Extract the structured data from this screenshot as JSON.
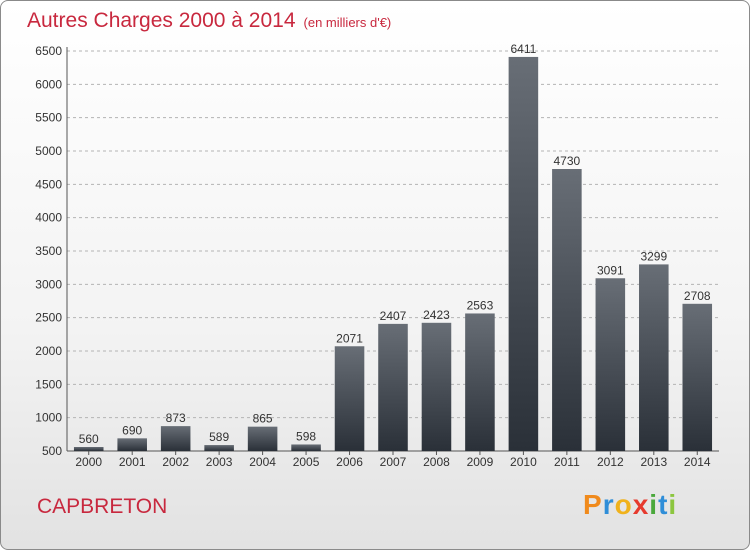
{
  "title": "Autres Charges 2000 à 2014",
  "unit_note": "(en milliers d'€)",
  "commune": "CAPBRETON",
  "logo": {
    "letters": [
      "P",
      "r",
      "o",
      "x",
      "i",
      "t",
      "i"
    ],
    "colors": [
      "#f08a1c",
      "#2f8ed8",
      "#f0b21c",
      "#e63a2e",
      "#4aa83c",
      "#2f8ed8",
      "#8cc63f"
    ]
  },
  "colors": {
    "title": "#c8283e",
    "bar_top": "#686e76",
    "bar_bottom": "#2a3038",
    "grid": "#b4b4b4"
  },
  "chart_data": {
    "type": "bar",
    "title": "Autres Charges 2000 à 2014",
    "ylabel": "",
    "xlabel": "",
    "categories": [
      "2000",
      "2001",
      "2002",
      "2003",
      "2004",
      "2005",
      "2006",
      "2007",
      "2008",
      "2009",
      "2010",
      "2011",
      "2012",
      "2013",
      "2014"
    ],
    "values": [
      560,
      690,
      873,
      589,
      865,
      598,
      2071,
      2407,
      2423,
      2563,
      6411,
      4730,
      3091,
      3299,
      2708
    ],
    "ylim": [
      500,
      6500
    ],
    "yticks": [
      500,
      1000,
      1500,
      2000,
      2500,
      3000,
      3500,
      4000,
      4500,
      5000,
      5500,
      6000,
      6500
    ],
    "grid": true,
    "grid_style": "dashed-horizontal"
  }
}
